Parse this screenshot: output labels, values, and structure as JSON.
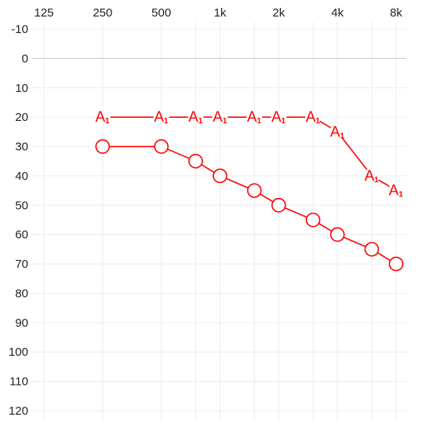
{
  "chart_data": {
    "type": "line",
    "title": "",
    "xlabel": "",
    "ylabel": "",
    "x_scale": "log",
    "x_ticks": [
      {
        "value": 125,
        "label": "125"
      },
      {
        "value": 250,
        "label": "250"
      },
      {
        "value": 500,
        "label": "500"
      },
      {
        "value": 1000,
        "label": "1k"
      },
      {
        "value": 2000,
        "label": "2k"
      },
      {
        "value": 4000,
        "label": "4k"
      },
      {
        "value": 8000,
        "label": "8k"
      }
    ],
    "x_gridlines": [
      125,
      250,
      500,
      750,
      1000,
      1500,
      2000,
      3000,
      4000,
      6000,
      8000
    ],
    "y_ticks": [
      {
        "value": -10,
        "label": "-10"
      },
      {
        "value": 0,
        "label": "0"
      },
      {
        "value": 10,
        "label": "10"
      },
      {
        "value": 20,
        "label": "20"
      },
      {
        "value": 30,
        "label": "30"
      },
      {
        "value": 40,
        "label": "40"
      },
      {
        "value": 50,
        "label": "50"
      },
      {
        "value": 60,
        "label": "60"
      },
      {
        "value": 70,
        "label": "70"
      },
      {
        "value": 80,
        "label": "80"
      },
      {
        "value": 90,
        "label": "90"
      },
      {
        "value": 100,
        "label": "100"
      },
      {
        "value": 110,
        "label": "110"
      },
      {
        "value": 120,
        "label": "120"
      }
    ],
    "ylim": [
      -10,
      120
    ],
    "y_inverted": true,
    "grid": true,
    "series": [
      {
        "marker": "A",
        "marker_subscript": "1",
        "color": "#ff0000",
        "points": [
          {
            "x": 250,
            "y": 20
          },
          {
            "x": 500,
            "y": 20
          },
          {
            "x": 750,
            "y": 20
          },
          {
            "x": 1000,
            "y": 20
          },
          {
            "x": 1500,
            "y": 20
          },
          {
            "x": 2000,
            "y": 20
          },
          {
            "x": 3000,
            "y": 20
          },
          {
            "x": 4000,
            "y": 25
          },
          {
            "x": 6000,
            "y": 40
          },
          {
            "x": 8000,
            "y": 45
          }
        ]
      },
      {
        "marker": "circle",
        "color": "#ff0000",
        "points": [
          {
            "x": 250,
            "y": 30
          },
          {
            "x": 500,
            "y": 30
          },
          {
            "x": 750,
            "y": 35
          },
          {
            "x": 1000,
            "y": 40
          },
          {
            "x": 1500,
            "y": 45
          },
          {
            "x": 2000,
            "y": 50
          },
          {
            "x": 3000,
            "y": 55
          },
          {
            "x": 4000,
            "y": 60
          },
          {
            "x": 6000,
            "y": 65
          },
          {
            "x": 8000,
            "y": 70
          }
        ]
      }
    ]
  }
}
